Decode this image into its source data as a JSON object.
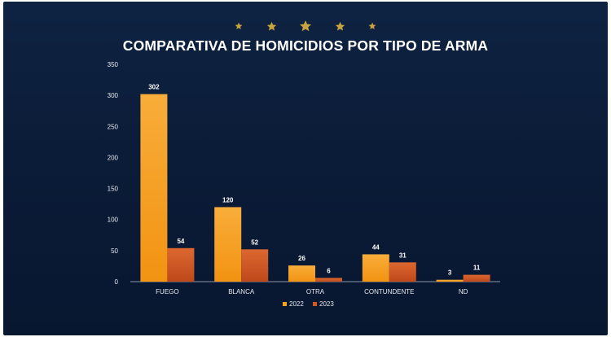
{
  "chart_data": {
    "type": "bar",
    "title": "COMPARATIVA DE HOMICIDIOS POR TIPO DE ARMA",
    "xlabel": "",
    "ylabel": "",
    "categories": [
      "FUEGO",
      "BLANCA",
      "OTRA",
      "CONTUNDENTE",
      "ND"
    ],
    "series": [
      {
        "name": "2022",
        "values": [
          302,
          120,
          26,
          44,
          3
        ],
        "color": "#f5a21c"
      },
      {
        "name": "2023",
        "values": [
          54,
          52,
          6,
          31,
          11
        ],
        "color": "#d25a22"
      }
    ],
    "ylim": [
      0,
      350
    ],
    "yticks": [
      0,
      50,
      100,
      150,
      200,
      250,
      300,
      350
    ],
    "grid": false,
    "legend": "bottom-center",
    "data_labels": true
  },
  "decoration": {
    "star_color": "#c9a43e",
    "star_count": 5,
    "star_icon": "star-icon"
  },
  "colors": {
    "background": "#0b1c38",
    "text": "#ffffff",
    "axis": "#8a93a6"
  }
}
